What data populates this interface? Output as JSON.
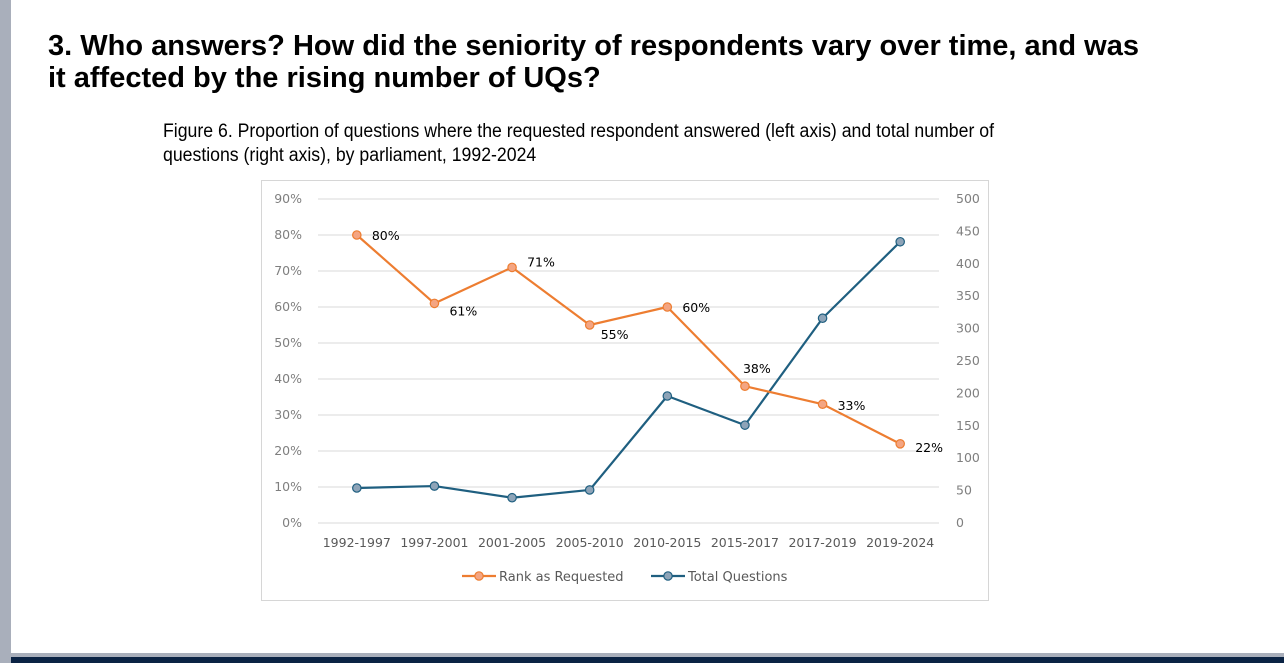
{
  "page": {
    "title": "3. Who answers? How did the seniority of respondents vary over time, and was it affected by the rising number of UQs?",
    "figure_caption": "Figure 6. Proportion of questions where the requested respondent answered (left axis) and total number of questions (right axis), by parliament, 1992-2024"
  },
  "colors": {
    "rank_line": "#ed7d31",
    "rank_marker_fill": "#f4a582",
    "total_line": "#1f5f80",
    "total_marker_fill": "#8ea4b8",
    "gridline": "#d9d9d9",
    "left_bar": "#a9afbb",
    "bottom_bar": "#0b2344"
  },
  "chart_data": {
    "type": "line",
    "title": "",
    "categories": [
      "1992-1997",
      "1997-2001",
      "2001-2005",
      "2005-2010",
      "2010-2015",
      "2015-2017",
      "2017-2019",
      "2019-2024"
    ],
    "series": [
      {
        "name": "Rank as Requested",
        "axis": "left",
        "values": [
          0.8,
          0.61,
          0.71,
          0.55,
          0.6,
          0.38,
          0.33,
          0.22
        ],
        "data_labels": [
          "80%",
          "61%",
          "71%",
          "55%",
          "60%",
          "38%",
          "33%",
          "22%"
        ]
      },
      {
        "name": "Total Questions",
        "axis": "right",
        "values": [
          54,
          57,
          39,
          51,
          196,
          151,
          316,
          434
        ],
        "data_labels": []
      }
    ],
    "left_axis": {
      "label": "",
      "range": [
        0,
        0.9
      ],
      "ticks": [
        "0%",
        "10%",
        "20%",
        "30%",
        "40%",
        "50%",
        "60%",
        "70%",
        "80%",
        "90%"
      ]
    },
    "right_axis": {
      "label": "",
      "range": [
        0,
        500
      ],
      "ticks": [
        "0",
        "50",
        "100",
        "150",
        "200",
        "250",
        "300",
        "350",
        "400",
        "450",
        "500"
      ]
    },
    "xlabel": "",
    "grid": true,
    "legend": "bottom"
  }
}
